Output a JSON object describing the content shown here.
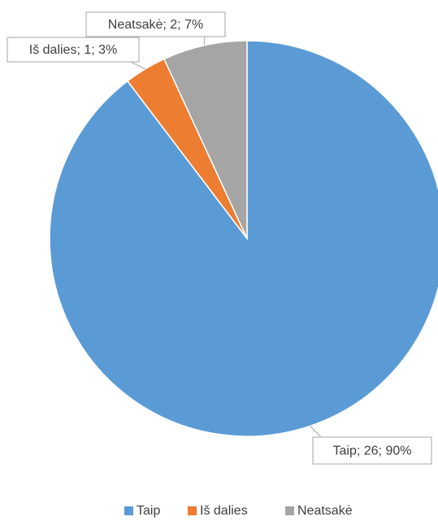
{
  "chart_data": {
    "type": "pie",
    "categories": [
      "Taip",
      "Iš dalies",
      "Neatsakė"
    ],
    "values": [
      26,
      1,
      2
    ],
    "value_labels": [
      "Taip; 26; 90%",
      "Iš dalies; 1; 3%",
      "Neatsakė; 2; 7%"
    ],
    "colors": [
      "#5b9bd5",
      "#ed7d31",
      "#a5a5a5"
    ],
    "legend": "bottom"
  }
}
